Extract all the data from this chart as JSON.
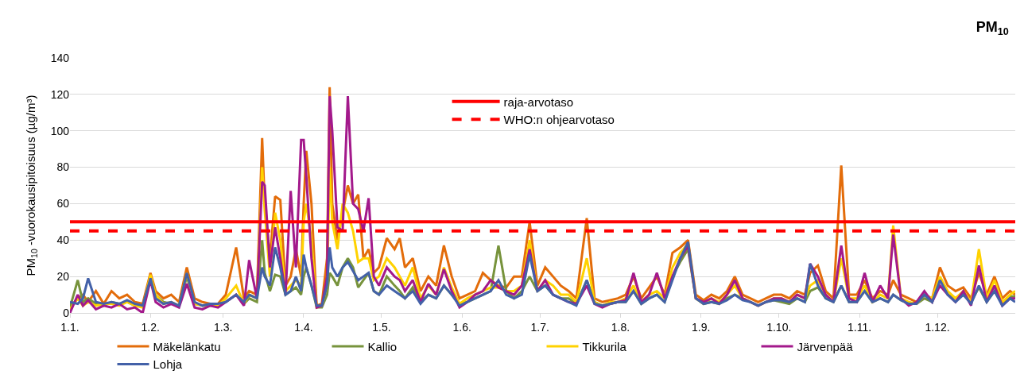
{
  "chart_data": {
    "type": "line",
    "title": "PM$_{10}$",
    "ylabel": "PM$_{10}$ -vuorokausipitoisuus (µg/m³)",
    "x": [
      "--01-01",
      "--01-04",
      "--01-06",
      "--01-08",
      "--01-11",
      "--01-14",
      "--01-17",
      "--01-20",
      "--01-23",
      "--01-26",
      "--01-29",
      "--02-01",
      "--02-03",
      "--02-06",
      "--02-09",
      "--02-12",
      "--02-15",
      "--02-18",
      "--02-21",
      "--02-24",
      "--02-27",
      "--03-02",
      "--03-06",
      "--03-09",
      "--03-11",
      "--03-14",
      "--03-16",
      "--03-17",
      "--03-19",
      "--03-21",
      "--03-23",
      "--03-25",
      "--03-27",
      "--03-29",
      "--03-31",
      "--04-01",
      "--04-02",
      "--04-04",
      "--04-06",
      "--04-08",
      "--04-10",
      "--04-11",
      "--04-12",
      "--04-14",
      "--04-16",
      "--04-18",
      "--04-20",
      "--04-22",
      "--04-24",
      "--04-26",
      "--04-28",
      "--04-30",
      "--05-03",
      "--05-06",
      "--05-08",
      "--05-10",
      "--05-13",
      "--05-16",
      "--05-19",
      "--05-22",
      "--05-25",
      "--05-28",
      "--05-31",
      "--06-03",
      "--06-06",
      "--06-09",
      "--06-12",
      "--06-15",
      "--06-18",
      "--06-21",
      "--06-24",
      "--06-27",
      "--06-30",
      "--07-03",
      "--07-06",
      "--07-09",
      "--07-12",
      "--07-15",
      "--07-19",
      "--07-22",
      "--07-25",
      "--07-28",
      "--07-31",
      "--08-03",
      "--08-06",
      "--08-09",
      "--08-12",
      "--08-15",
      "--08-18",
      "--08-21",
      "--08-24",
      "--08-27",
      "--08-30",
      "--09-02",
      "--09-05",
      "--09-08",
      "--09-11",
      "--09-14",
      "--09-17",
      "--09-20",
      "--09-23",
      "--09-26",
      "--09-29",
      "--10-02",
      "--10-05",
      "--10-08",
      "--10-11",
      "--10-13",
      "--10-16",
      "--10-19",
      "--10-22",
      "--10-25",
      "--10-28",
      "--10-31",
      "--11-03",
      "--11-06",
      "--11-09",
      "--11-12",
      "--11-14",
      "--11-17",
      "--11-20",
      "--11-23",
      "--11-26",
      "--11-29",
      "--12-02",
      "--12-05",
      "--12-08",
      "--12-11",
      "--12-14",
      "--12-17",
      "--12-20",
      "--12-23",
      "--12-26",
      "--12-29",
      "--12-31"
    ],
    "series": [
      {
        "name": "Mäkelänkatu",
        "color": "#e36c0a",
        "values": [
          3,
          8,
          10,
          6,
          12,
          5,
          12,
          8,
          10,
          6,
          5,
          22,
          12,
          8,
          10,
          6,
          25,
          8,
          6,
          5,
          5,
          10,
          36,
          8,
          12,
          10,
          96,
          60,
          30,
          64,
          62,
          15,
          20,
          35,
          20,
          60,
          89,
          60,
          4,
          5,
          30,
          124,
          60,
          40,
          55,
          70,
          60,
          65,
          30,
          35,
          22,
          25,
          41,
          35,
          41,
          25,
          30,
          12,
          20,
          15,
          37,
          20,
          8,
          10,
          12,
          22,
          18,
          15,
          14,
          20,
          20,
          50,
          15,
          25,
          20,
          15,
          12,
          8,
          52,
          8,
          6,
          7,
          8,
          10,
          20,
          8,
          14,
          20,
          10,
          33,
          36,
          40,
          10,
          7,
          10,
          8,
          12,
          20,
          10,
          8,
          6,
          8,
          10,
          10,
          8,
          12,
          10,
          22,
          26,
          12,
          8,
          81,
          10,
          10,
          18,
          8,
          12,
          10,
          18,
          10,
          8,
          6,
          10,
          8,
          25,
          15,
          12,
          14,
          8,
          22,
          10,
          20,
          8,
          12,
          10
        ]
      },
      {
        "name": "Kallio",
        "color": "#77933c",
        "values": [
          3,
          18,
          6,
          8,
          5,
          4,
          6,
          5,
          6,
          4,
          4,
          18,
          10,
          6,
          5,
          4,
          20,
          5,
          4,
          4,
          4,
          6,
          10,
          5,
          8,
          6,
          40,
          22,
          12,
          21,
          20,
          10,
          12,
          14,
          10,
          20,
          25,
          15,
          3,
          3,
          10,
          22,
          20,
          15,
          25,
          30,
          25,
          14,
          18,
          22,
          12,
          10,
          20,
          15,
          12,
          8,
          14,
          6,
          10,
          8,
          15,
          10,
          5,
          6,
          8,
          10,
          12,
          37,
          12,
          8,
          12,
          20,
          12,
          15,
          10,
          8,
          8,
          5,
          18,
          6,
          4,
          5,
          6,
          6,
          12,
          5,
          8,
          10,
          6,
          20,
          28,
          35,
          8,
          5,
          6,
          5,
          8,
          10,
          8,
          6,
          4,
          6,
          7,
          6,
          5,
          8,
          6,
          12,
          14,
          8,
          6,
          15,
          6,
          6,
          12,
          6,
          8,
          6,
          10,
          7,
          5,
          5,
          8,
          6,
          19,
          10,
          8,
          10,
          6,
          14,
          6,
          12,
          5,
          9,
          9
        ]
      },
      {
        "name": "Tikkurila",
        "color": "#ffd200",
        "values": [
          2,
          8,
          4,
          6,
          4,
          5,
          5,
          4,
          6,
          4,
          3,
          21,
          10,
          5,
          6,
          4,
          22,
          5,
          4,
          4,
          4,
          8,
          15,
          5,
          10,
          8,
          80,
          56,
          20,
          55,
          40,
          12,
          15,
          18,
          15,
          50,
          60,
          40,
          3,
          4,
          15,
          80,
          50,
          35,
          60,
          55,
          45,
          28,
          30,
          30,
          18,
          20,
          30,
          25,
          20,
          15,
          25,
          8,
          15,
          10,
          25,
          14,
          5,
          8,
          10,
          12,
          14,
          14,
          12,
          12,
          15,
          40,
          12,
          18,
          15,
          10,
          10,
          6,
          30,
          6,
          4,
          6,
          6,
          8,
          15,
          6,
          10,
          12,
          8,
          25,
          33,
          38,
          8,
          5,
          8,
          6,
          10,
          15,
          8,
          6,
          4,
          6,
          8,
          8,
          6,
          10,
          8,
          15,
          18,
          10,
          6,
          30,
          8,
          8,
          15,
          6,
          10,
          8,
          48,
          8,
          6,
          5,
          10,
          8,
          20,
          12,
          8,
          12,
          6,
          35,
          8,
          18,
          6,
          10,
          12
        ]
      },
      {
        "name": "Järvenpää",
        "color": "#a3198b",
        "values": [
          0,
          10,
          4,
          7,
          2,
          4,
          3,
          5,
          2,
          3,
          0,
          18,
          6,
          3,
          5,
          3,
          16,
          3,
          2,
          4,
          3,
          6,
          10,
          4,
          29,
          8,
          72,
          70,
          25,
          47,
          30,
          10,
          67,
          25,
          95,
          95,
          75,
          30,
          3,
          4,
          20,
          119,
          100,
          47,
          45,
          119,
          60,
          57,
          45,
          63,
          20,
          15,
          25,
          20,
          18,
          12,
          18,
          6,
          16,
          10,
          24,
          12,
          3,
          6,
          10,
          12,
          18,
          14,
          12,
          10,
          15,
          35,
          12,
          18,
          10,
          8,
          6,
          5,
          15,
          5,
          3,
          5,
          6,
          7,
          22,
          6,
          10,
          22,
          8,
          20,
          30,
          37,
          8,
          6,
          8,
          5,
          10,
          18,
          8,
          6,
          4,
          6,
          8,
          8,
          6,
          10,
          8,
          27,
          20,
          10,
          6,
          37,
          8,
          6,
          22,
          6,
          15,
          8,
          43,
          8,
          4,
          6,
          12,
          6,
          15,
          10,
          6,
          12,
          4,
          26,
          6,
          15,
          4,
          8,
          8
        ]
      },
      {
        "name": "Lohja",
        "color": "#4361a8",
        "values": [
          6,
          5,
          8,
          19,
          6,
          5,
          6,
          5,
          7,
          5,
          4,
          19,
          8,
          5,
          6,
          4,
          22,
          6,
          4,
          5,
          5,
          6,
          10,
          6,
          10,
          8,
          25,
          20,
          15,
          36,
          25,
          10,
          12,
          20,
          12,
          32,
          25,
          15,
          4,
          4,
          15,
          36,
          25,
          20,
          25,
          28,
          23,
          18,
          20,
          22,
          12,
          10,
          15,
          12,
          10,
          8,
          12,
          5,
          10,
          8,
          15,
          10,
          4,
          6,
          8,
          10,
          12,
          18,
          10,
          8,
          10,
          32,
          12,
          15,
          10,
          8,
          6,
          4,
          18,
          5,
          4,
          5,
          6,
          6,
          12,
          5,
          8,
          10,
          6,
          18,
          30,
          39,
          8,
          5,
          6,
          5,
          7,
          10,
          7,
          6,
          4,
          6,
          7,
          7,
          6,
          8,
          6,
          27,
          15,
          8,
          6,
          15,
          6,
          6,
          12,
          6,
          8,
          6,
          10,
          7,
          5,
          5,
          10,
          6,
          18,
          10,
          6,
          10,
          5,
          15,
          6,
          12,
          4,
          8,
          6
        ]
      }
    ],
    "xlim": [
      "--01-01",
      "--12-31"
    ],
    "xticks": [
      {
        "value": "--01-01",
        "label": "1.1."
      },
      {
        "value": "--02-01",
        "label": "1.2."
      },
      {
        "value": "--03-01",
        "label": "1.3."
      },
      {
        "value": "--04-01",
        "label": "1.4."
      },
      {
        "value": "--05-01",
        "label": "1.5."
      },
      {
        "value": "--06-01",
        "label": "1.6."
      },
      {
        "value": "--07-01",
        "label": "1.7."
      },
      {
        "value": "--08-01",
        "label": "1.8."
      },
      {
        "value": "--09-01",
        "label": "1.9."
      },
      {
        "value": "--10-01",
        "label": "1.10."
      },
      {
        "value": "--11-01",
        "label": "1.11."
      },
      {
        "value": "--12-01",
        "label": "1.12."
      }
    ],
    "ylim": [
      0,
      140
    ],
    "yticks": [
      0,
      20,
      40,
      60,
      80,
      100,
      120,
      140
    ],
    "ref_lines": [
      {
        "axis": "y",
        "value": 50,
        "label": "raja-arvotaso",
        "color": "#ff0000",
        "line_style": "solid"
      },
      {
        "axis": "y",
        "value": 45,
        "label": "WHO:n ohjearvotaso",
        "color": "#ff0000",
        "line_style": "dashed"
      }
    ],
    "grid": "y",
    "legend": "bottom",
    "line_style": "solid"
  }
}
